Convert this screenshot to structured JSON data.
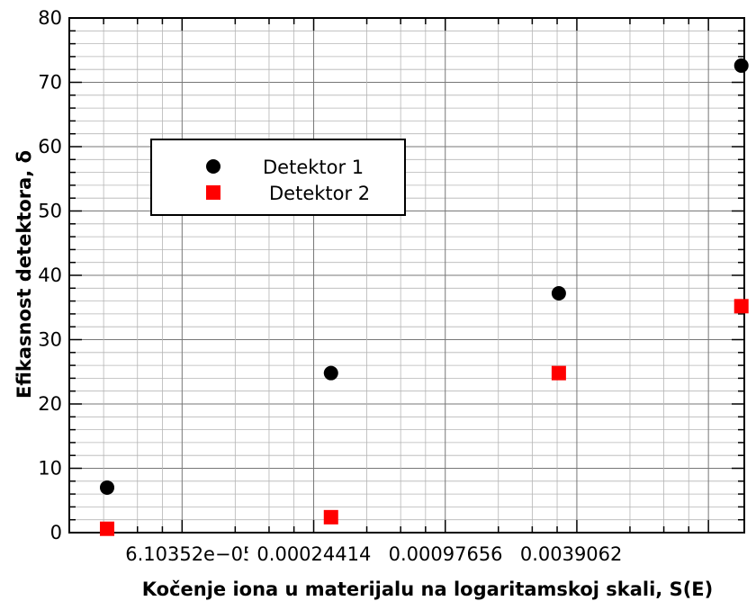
{
  "chart_data": {
    "type": "scatter",
    "xlabel": "Kočenje iona u materijalu na logaritamskoj skali, S(E)",
    "ylabel": "Efikasnost detektora, δ",
    "x_scale": "log2",
    "xlim": [
      1.86e-05,
      0.0228
    ],
    "ylim": [
      0,
      80
    ],
    "y_ticks": [
      0,
      10,
      20,
      30,
      40,
      50,
      60,
      70,
      80
    ],
    "x_ticks": [
      {
        "value": 6.103515625e-05,
        "label": "6.10352e−05"
      },
      {
        "value": 0.000244140625,
        "label": "0.00024414"
      },
      {
        "value": 0.0009765625,
        "label": "0.00097656"
      },
      {
        "value": 0.00390625,
        "label": "0.0039062"
      }
    ],
    "grid": true,
    "legend_placement": "upper-left",
    "series": [
      {
        "name": "Detektor 1",
        "marker": "circle",
        "color": "#000000",
        "points": [
          {
            "x": 2.77e-05,
            "y": 7.0
          },
          {
            "x": 0.000293,
            "y": 24.8
          },
          {
            "x": 0.00323,
            "y": 37.2
          },
          {
            "x": 0.0221,
            "y": 72.6
          }
        ]
      },
      {
        "name": "Detektor 2",
        "marker": "square",
        "color": "#ff0000",
        "points": [
          {
            "x": 2.77e-05,
            "y": 0.6
          },
          {
            "x": 0.000293,
            "y": 2.4
          },
          {
            "x": 0.00323,
            "y": 24.8
          },
          {
            "x": 0.0221,
            "y": 35.2
          }
        ]
      }
    ]
  }
}
